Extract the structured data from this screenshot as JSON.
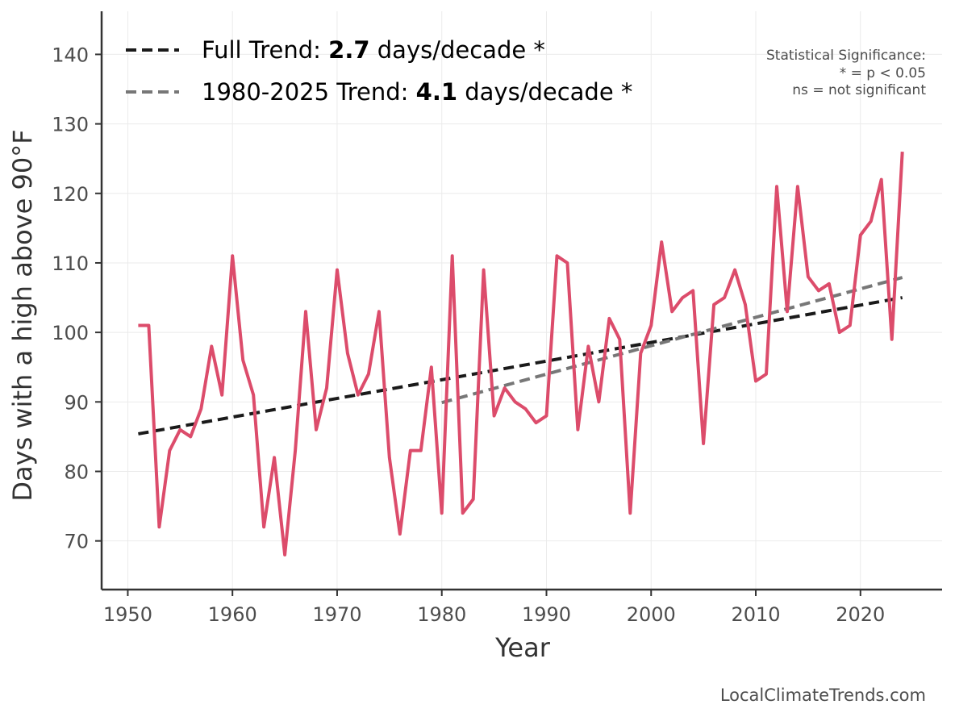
{
  "chart_data": {
    "type": "line",
    "xlabel": "Year",
    "ylabel": "Days with a high above 90°F",
    "xlim": [
      1947.5,
      2027.8
    ],
    "ylim": [
      63,
      146.2
    ],
    "x_ticks": [
      1950,
      1960,
      1970,
      1980,
      1990,
      2000,
      2010,
      2020
    ],
    "y_ticks": [
      70,
      80,
      90,
      100,
      110,
      120,
      130,
      140
    ],
    "grid": true,
    "legend_position": "top-left",
    "series": [
      {
        "name": "Days with a high above 90°F",
        "color": "#dc4c6b",
        "x": [
          1951,
          1952,
          1953,
          1954,
          1955,
          1956,
          1957,
          1958,
          1959,
          1960,
          1961,
          1962,
          1963,
          1964,
          1965,
          1966,
          1967,
          1968,
          1969,
          1970,
          1971,
          1972,
          1973,
          1974,
          1975,
          1976,
          1977,
          1978,
          1979,
          1980,
          1981,
          1982,
          1983,
          1984,
          1985,
          1986,
          1987,
          1988,
          1989,
          1990,
          1991,
          1992,
          1993,
          1994,
          1995,
          1996,
          1997,
          1998,
          1999,
          2000,
          2001,
          2002,
          2003,
          2004,
          2005,
          2006,
          2007,
          2008,
          2009,
          2010,
          2011,
          2012,
          2013,
          2014,
          2015,
          2016,
          2017,
          2018,
          2019,
          2020,
          2021,
          2022,
          2023,
          2024
        ],
        "values": [
          101,
          101,
          72,
          83,
          86,
          85,
          89,
          98,
          91,
          111,
          96,
          91,
          72,
          82,
          68,
          83,
          103,
          86,
          92,
          109,
          97,
          91,
          94,
          103,
          82,
          71,
          83,
          83,
          95,
          74,
          111,
          74,
          76,
          109,
          88,
          92,
          90,
          89,
          87,
          88,
          111,
          110,
          86,
          98,
          90,
          102,
          99,
          74,
          97,
          101,
          113,
          103,
          105,
          106,
          84,
          104,
          105,
          109,
          104,
          93,
          94,
          121,
          103,
          121,
          108,
          106,
          107,
          100,
          101,
          114,
          116,
          122,
          99,
          126
        ]
      }
    ],
    "trends": [
      {
        "label_prefix": "Full Trend: ",
        "label_value": "2.7",
        "label_suffix": " days/decade *",
        "color": "#1a1a1a",
        "x": [
          1951,
          2024
        ],
        "values": [
          85.4,
          105.0
        ]
      },
      {
        "label_prefix": "1980-2025 Trend: ",
        "label_value": "4.1",
        "label_suffix": " days/decade *",
        "color": "#777777",
        "x": [
          1980,
          2024
        ],
        "values": [
          89.9,
          107.9
        ]
      }
    ],
    "annotations": {
      "significance_title": "Statistical Significance:",
      "significance_line1": "* = p < 0.05",
      "significance_line2": "ns = not significant"
    },
    "credit": "LocalClimateTrends.com"
  }
}
